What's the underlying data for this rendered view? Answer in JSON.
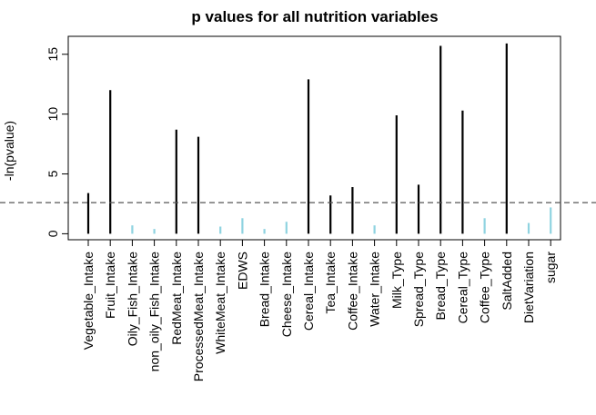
{
  "chart_data": {
    "type": "bar",
    "title": "p values for all nutrition variables",
    "xlabel": "",
    "ylabel": "-ln(pvalue)",
    "ylim": [
      -0.5,
      16.5
    ],
    "yticks": [
      0,
      5,
      10,
      15
    ],
    "threshold": 2.6,
    "colors": {
      "significant": "#000000",
      "not_significant": "#8fd3e0",
      "threshold": "#555555"
    },
    "categories": [
      "Vegetable_Intake",
      "Fruit_Intake",
      "Oily_Fish_Intake",
      "non_oily_Fish_Intake",
      "RedMeat_Intake",
      "ProcessedMeat_Intake",
      "WhiteMeat_Intake",
      "EDWS",
      "Bread_Intake",
      "Cheese_Intake",
      "Cereal_Intake",
      "Tea_Intake",
      "Coffee_Intake",
      "Water_Intake",
      "Milk_Type",
      "Spread_Type",
      "Bread_Type",
      "Cereal_Type",
      "Coffee_Type",
      "SaltAdded",
      "DietVariation",
      "sugar"
    ],
    "values": [
      3.4,
      12.0,
      0.7,
      0.4,
      8.7,
      8.1,
      0.6,
      1.3,
      0.4,
      1.0,
      12.9,
      3.2,
      3.9,
      0.7,
      9.9,
      4.1,
      15.7,
      10.3,
      1.3,
      15.9,
      0.9,
      2.2
    ],
    "grid": false,
    "legend": "none"
  }
}
